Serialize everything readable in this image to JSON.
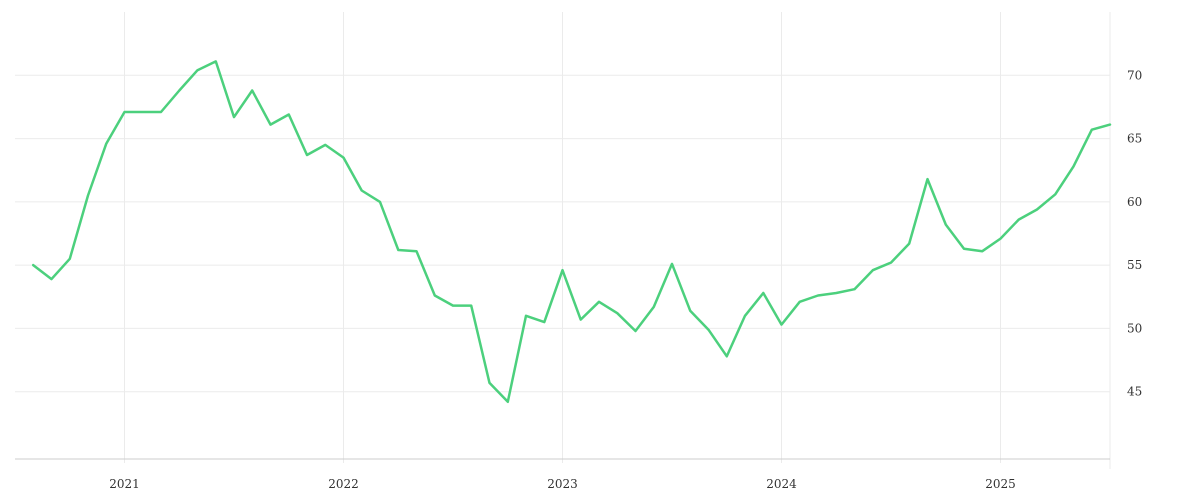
{
  "chart_data": {
    "type": "line",
    "title": "",
    "xlabel": "",
    "ylabel": "",
    "x_ticks": [
      "2021",
      "2022",
      "2023",
      "2024",
      "2025"
    ],
    "y_ticks": [
      "45",
      "50",
      "55",
      "60",
      "65",
      "70"
    ],
    "ylim": [
      40,
      75
    ],
    "xlim": [
      "2020-07-01",
      "2025-07-01"
    ],
    "grid": true,
    "legend": "none",
    "colors": {
      "line": "#4cd07d",
      "grid": "#ebebeb",
      "axis": "#cccccc",
      "text": "#333333"
    },
    "series": [
      {
        "x": [
          "2020-08",
          "2020-09",
          "2020-10",
          "2020-11",
          "2020-12",
          "2021-01",
          "2021-02",
          "2021-03",
          "2021-04",
          "2021-05",
          "2021-06",
          "2021-07",
          "2021-08",
          "2021-09",
          "2021-10",
          "2021-11",
          "2021-12",
          "2022-01",
          "2022-02",
          "2022-03",
          "2022-04",
          "2022-05",
          "2022-06",
          "2022-07",
          "2022-08",
          "2022-09",
          "2022-10",
          "2022-11",
          "2022-12",
          "2023-01",
          "2023-02",
          "2023-03",
          "2023-04",
          "2023-05",
          "2023-06",
          "2023-07",
          "2023-08",
          "2023-09",
          "2023-10",
          "2023-11",
          "2023-12",
          "2024-01",
          "2024-02",
          "2024-03",
          "2024-04",
          "2024-05",
          "2024-06",
          "2024-07",
          "2024-08",
          "2024-09",
          "2024-10",
          "2024-11",
          "2024-12",
          "2025-01",
          "2025-02",
          "2025-03",
          "2025-04",
          "2025-05",
          "2025-06",
          "2025-07"
        ],
        "y": [
          55.0,
          53.9,
          55.5,
          60.5,
          64.6,
          67.1,
          67.1,
          67.1,
          68.8,
          70.4,
          71.1,
          66.7,
          68.8,
          66.1,
          66.9,
          63.7,
          64.5,
          63.5,
          60.9,
          60.0,
          56.2,
          56.1,
          52.6,
          51.8,
          51.8,
          45.7,
          44.2,
          51.0,
          50.5,
          54.6,
          50.7,
          52.1,
          51.2,
          49.8,
          51.7,
          55.1,
          51.4,
          49.9,
          47.8,
          51.0,
          52.8,
          50.3,
          52.1,
          52.6,
          52.8,
          53.1,
          54.6,
          55.2,
          56.7,
          61.8,
          58.2,
          56.3,
          56.1,
          57.1,
          58.6,
          59.4,
          60.6,
          62.8,
          65.7,
          66.1
        ]
      }
    ]
  }
}
